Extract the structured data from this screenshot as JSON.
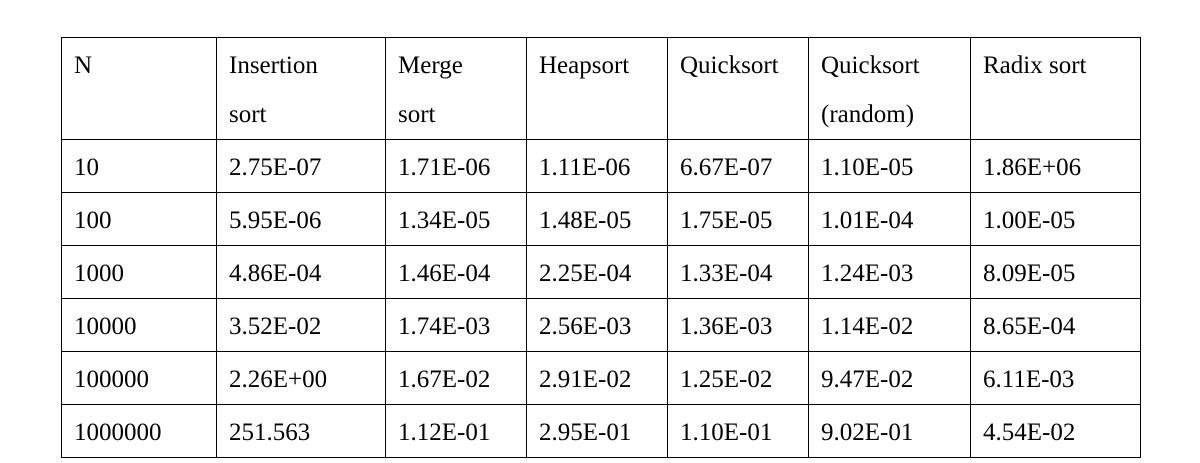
{
  "table": {
    "headers": [
      {
        "line1": "N",
        "line2": ""
      },
      {
        "line1": "Insertion",
        "line2": "sort"
      },
      {
        "line1": "Merge",
        "line2": "sort"
      },
      {
        "line1": "Heapsort",
        "line2": ""
      },
      {
        "line1": "Quicksort",
        "line2": ""
      },
      {
        "line1": "Quicksort",
        "line2": "(random)"
      },
      {
        "line1": "Radix sort",
        "line2": ""
      }
    ],
    "rows": [
      [
        "10",
        "2.75E-07",
        "1.71E-06",
        "1.11E-06",
        "6.67E-07",
        "1.10E-05",
        "1.86E+06"
      ],
      [
        "100",
        "5.95E-06",
        "1.34E-05",
        "1.48E-05",
        "1.75E-05",
        "1.01E-04",
        "1.00E-05"
      ],
      [
        "1000",
        "4.86E-04",
        "1.46E-04",
        "2.25E-04",
        "1.33E-04",
        "1.24E-03",
        "8.09E-05"
      ],
      [
        "10000",
        "3.52E-02",
        "1.74E-03",
        "2.56E-03",
        "1.36E-03",
        "1.14E-02",
        "8.65E-04"
      ],
      [
        "100000",
        "2.26E+00",
        "1.67E-02",
        "2.91E-02",
        "1.25E-02",
        "9.47E-02",
        "6.11E-03"
      ],
      [
        "1000000",
        "251.563",
        "1.12E-01",
        "2.95E-01",
        "1.10E-01",
        "9.02E-01",
        "4.54E-02"
      ]
    ]
  }
}
